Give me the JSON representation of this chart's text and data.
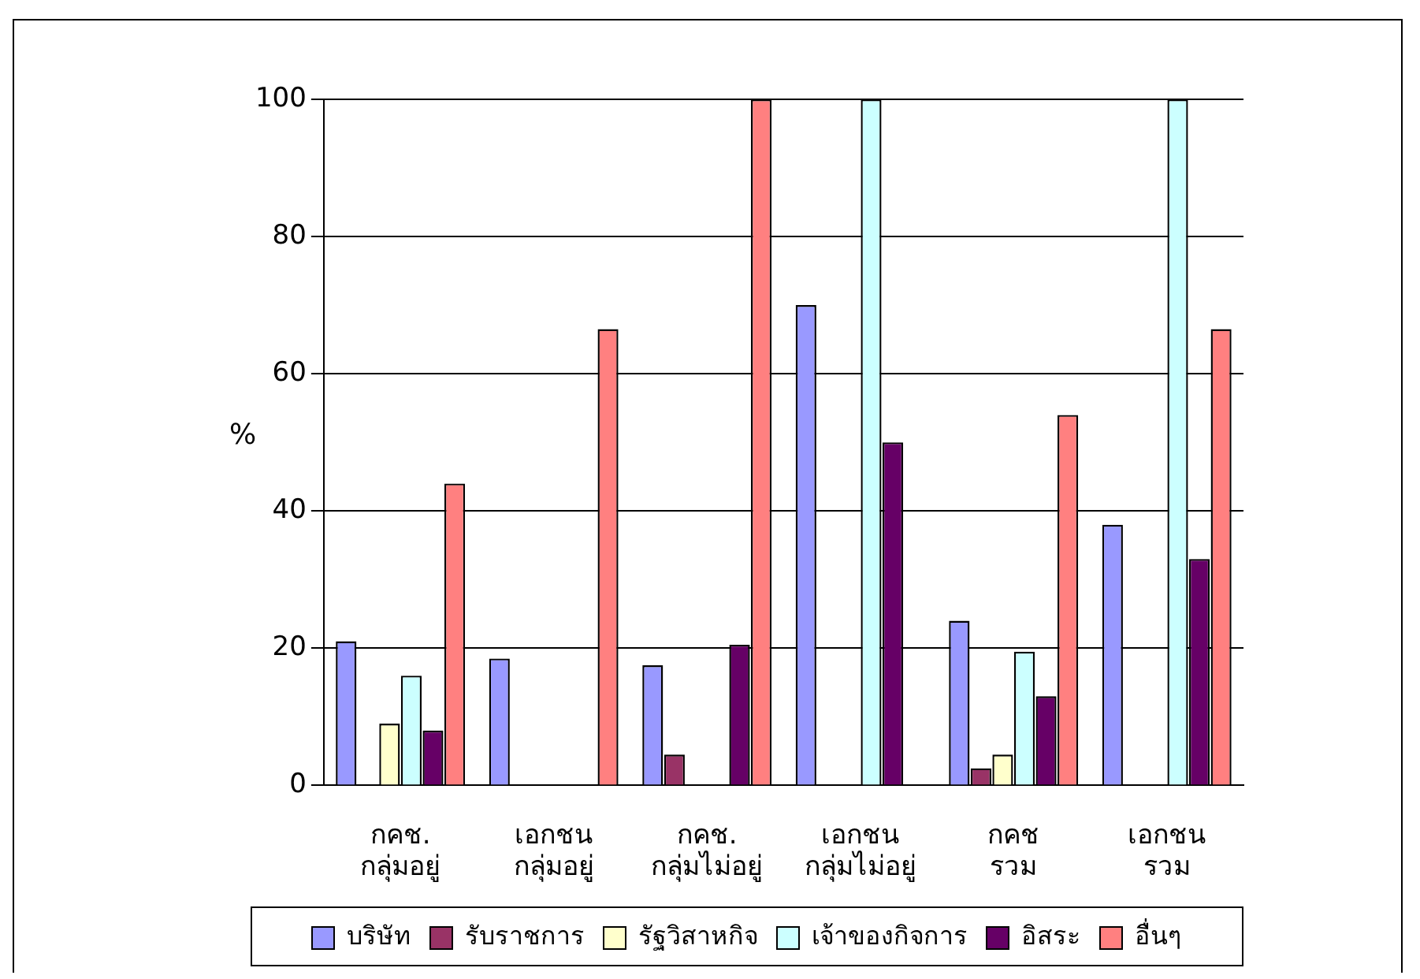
{
  "chart_data": {
    "type": "bar",
    "ylabel": "%",
    "categories": [
      "กคช.\nกลุ่มอยู่",
      "เอกชน\nกลุ่มอยู่",
      "กคช.\nกลุ่มไม่อยู่",
      "เอกชน\nกลุ่มไม่อยู่",
      "กคช\nรวม",
      "เอกชน\nรวม"
    ],
    "series": [
      {
        "name": "บริษัท",
        "color": "#9999ff",
        "values": [
          21,
          18.5,
          17.5,
          70,
          24,
          38
        ]
      },
      {
        "name": "รับราชการ",
        "color": "#993366",
        "values": [
          0,
          0,
          4.5,
          0,
          2.5,
          0
        ]
      },
      {
        "name": "รัฐวิสาหกิจ",
        "color": "#ffffcc",
        "values": [
          9,
          0,
          0,
          0,
          4.5,
          0
        ]
      },
      {
        "name": "เจ้าของกิจการ",
        "color": "#ccffff",
        "values": [
          16,
          0,
          0,
          100,
          19.5,
          100
        ]
      },
      {
        "name": "อิสระ",
        "color": "#660066",
        "values": [
          8,
          0,
          20.5,
          50,
          13,
          33
        ]
      },
      {
        "name": "อื่นๆ",
        "color": "#ff8080",
        "values": [
          44,
          66.5,
          100,
          0,
          54,
          66.5
        ]
      }
    ],
    "ylim": [
      0,
      100
    ],
    "yticks": [
      0,
      20,
      40,
      60,
      80,
      100
    ],
    "grid": "y",
    "legend": "bottom"
  }
}
